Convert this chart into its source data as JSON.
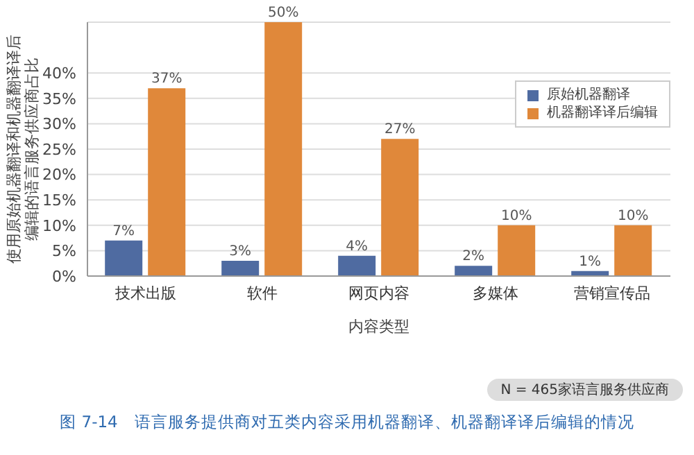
{
  "chart_data": {
    "type": "bar",
    "title": "图 7-14　语言服务提供商对五类内容采用机器翻译、机器翻译译后编辑的情况",
    "xlabel": "内容类型",
    "ylabel": "使用原始机器翻译和机器翻译译后编辑的语言服务供应商占比",
    "categories": [
      "技术出版",
      "软件",
      "网页内容",
      "多媒体",
      "营销宣传品"
    ],
    "series": [
      {
        "name": "原始机器翻译",
        "color": "#4f6ba1",
        "values": [
          7,
          3,
          4,
          2,
          1
        ],
        "value_labels": [
          "7%",
          "3%",
          "4%",
          "2%",
          "1%"
        ]
      },
      {
        "name": "机器翻译译后编辑",
        "color": "#e0883a",
        "values": [
          37,
          50,
          27,
          10,
          10
        ],
        "value_labels": [
          "37%",
          "50%",
          "27%",
          "10%",
          "10%"
        ]
      }
    ],
    "ylim": [
      0,
      50
    ],
    "yticks": [
      {
        "value": 0,
        "label": "0%"
      },
      {
        "value": 5,
        "label": "5%"
      },
      {
        "value": 10,
        "label": "10%"
      },
      {
        "value": 15,
        "label": "15%"
      },
      {
        "value": 20,
        "label": "20%"
      },
      {
        "value": 25,
        "label": "25%"
      },
      {
        "value": 30,
        "label": "30%"
      },
      {
        "value": 35,
        "label": "35%"
      },
      {
        "value": 40,
        "label": "40%"
      }
    ],
    "grid": "y",
    "legend": "top right",
    "annotations": [
      "N = 465家语言服务供应商"
    ]
  }
}
